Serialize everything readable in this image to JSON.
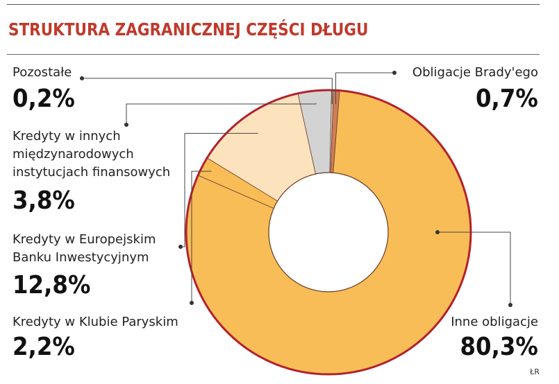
{
  "title": "STRUKTURA ZAGRANICZNEJ CZĘŚCI DŁUGU",
  "credit": "ŁR",
  "colors": {
    "title": "#c0392b",
    "ring_outline": "#b3202a",
    "inne_obligacje": "#f8bd57",
    "kredyty_klub_paryski": "#f8bd57",
    "kredyty_ebi": "#fde3bd",
    "kredyty_inne_instytucje": "#d3d3d3",
    "pozostale": "#e6e6e6",
    "obligacje_bradyego": "#cf7d55"
  },
  "chart_data": {
    "type": "pie",
    "donut": true,
    "title": "STRUKTURA ZAGRANICZNEJ CZĘŚCI DŁUGU",
    "slices": [
      {
        "label": "Obligacje Brady'ego",
        "value": 0.7,
        "display": "0,7%",
        "color": "#cf7d55"
      },
      {
        "label": "Inne obligacje",
        "value": 80.3,
        "display": "80,3%",
        "color": "#f8bd57"
      },
      {
        "label": "Kredyty w Klubie Paryskim",
        "value": 2.2,
        "display": "2,2%",
        "color": "#f8bd57"
      },
      {
        "label": "Kredyty w Europejskim Banku Inwestycyjnym",
        "value": 12.8,
        "display": "12,8%",
        "color": "#fde3bd"
      },
      {
        "label": "Kredyty w innych międzynarodowych instytucjach finansowych",
        "value": 3.8,
        "display": "3,8%",
        "color": "#d3d3d3"
      },
      {
        "label": "Pozostałe",
        "value": 0.2,
        "display": "0,2%",
        "color": "#e6e6e6"
      }
    ]
  },
  "labels": {
    "pozostale": {
      "lines": [
        "Pozostałe"
      ],
      "pct": "0,2%"
    },
    "inne_instytucje": {
      "lines": [
        "Kredyty w innych",
        "międzynarodowych",
        "instytucjach finansowych"
      ],
      "pct": "3,8%"
    },
    "ebi": {
      "lines": [
        "Kredyty w Europejskim",
        "Banku Inwestycyjnym"
      ],
      "pct": "12,8%"
    },
    "klub_paryski": {
      "lines": [
        "Kredyty w Klubie Paryskim"
      ],
      "pct": "2,2%"
    },
    "brady": {
      "lines": [
        "Obligacje Brady'ego"
      ],
      "pct": "0,7%"
    },
    "inne_obligacje": {
      "lines": [
        "Inne obligacje"
      ],
      "pct": "80,3%"
    }
  }
}
